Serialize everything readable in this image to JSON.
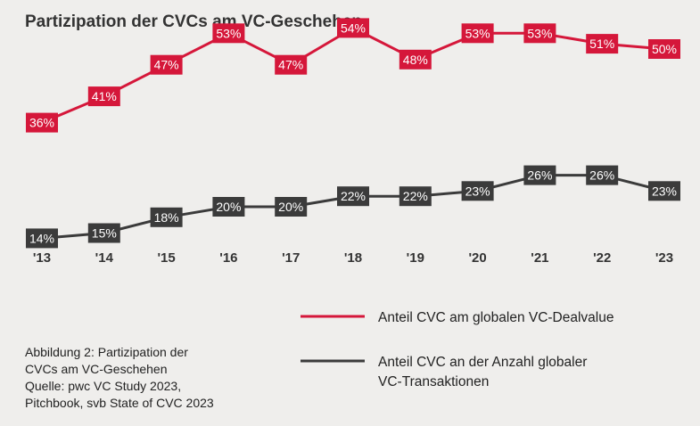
{
  "chart_data": {
    "type": "line",
    "title": "Partizipation der CVCs am VC-Geschehen",
    "categories": [
      "'13",
      "'14",
      "'15",
      "'16",
      "'17",
      "'18",
      "'19",
      "'20",
      "'21",
      "'22",
      "'23"
    ],
    "series": [
      {
        "name": "Anteil CVC am globalen VC-Dealvalue",
        "values": [
          36,
          41,
          47,
          53,
          47,
          54,
          48,
          53,
          53,
          51,
          50
        ],
        "labels": [
          "36%",
          "41%",
          "47%",
          "53%",
          "47%",
          "54%",
          "48%",
          "53%",
          "53%",
          "51%",
          "50%"
        ],
        "color": "#d5173a"
      },
      {
        "name": "Anteil CVC an der Anzahl globaler VC-Transaktionen",
        "values": [
          14,
          15,
          18,
          20,
          20,
          22,
          22,
          23,
          26,
          26,
          23
        ],
        "labels": [
          "14%",
          "15%",
          "18%",
          "20%",
          "20%",
          "22%",
          "22%",
          "23%",
          "26%",
          "26%",
          "23%"
        ],
        "color": "#3b3b3b"
      }
    ],
    "legend": {
      "position": "bottom-right",
      "items": [
        {
          "lines": [
            "Anteil CVC am globalen VC-Dealvalue"
          ],
          "color": "#d5173a"
        },
        {
          "lines": [
            "Anteil CVC an der Anzahl globaler",
            "VC-Transaktionen"
          ],
          "color": "#3b3b3b"
        }
      ]
    },
    "grid": false
  },
  "caption": {
    "line1": "Abbildung 2: Partizipation der",
    "line2": "CVCs am VC-Geschehen",
    "line3": "Quelle: pwc VC Study 2023,",
    "line4": "Pitchbook, svb State of CVC 2023"
  }
}
